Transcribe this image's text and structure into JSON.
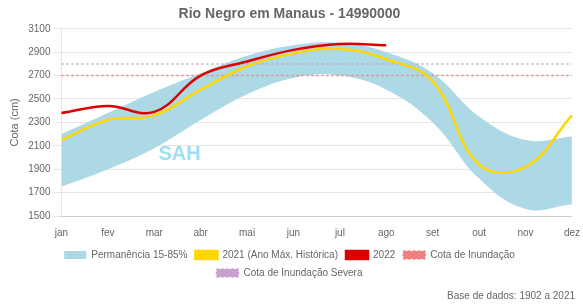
{
  "chart_data": {
    "type": "line",
    "title": "Rio Negro em Manaus - 14990000",
    "y_label": "Cota (cm)",
    "categories": [
      "jan",
      "fev",
      "mar",
      "abr",
      "mai",
      "jun",
      "jul",
      "ago",
      "set",
      "out",
      "nov",
      "dez"
    ],
    "series": [
      {
        "name": "Permanência 15-85%",
        "type": "band",
        "color": "#add8e6",
        "values": [
          2200,
          2380,
          2560,
          2720,
          2870,
          2960,
          2980,
          2900,
          2720,
          2350,
          2150,
          2180
        ],
        "lower": [
          1750,
          1900,
          2080,
          2320,
          2540,
          2680,
          2700,
          2580,
          2300,
          1820,
          1560,
          1600
        ]
      },
      {
        "name": "2021 (Ano Máx. Histórica)",
        "type": "line",
        "color": "#ffd700",
        "line_style": "solid",
        "values": [
          2150,
          2320,
          2360,
          2580,
          2780,
          2890,
          2930,
          2840,
          2650,
          1940,
          1920,
          2360
        ]
      },
      {
        "name": "2022",
        "type": "line",
        "color": "#dd0000",
        "line_style": "solid",
        "values": [
          2380,
          2440,
          2390,
          2700,
          2820,
          2920,
          2970,
          2960,
          null,
          null,
          null,
          null
        ]
      },
      {
        "name": "Cota de Inundação",
        "type": "hline",
        "color": "#f08080",
        "line_style": "dotted",
        "value": 2700
      },
      {
        "name": "Cota de Inundação Severa",
        "type": "hline",
        "color": "#c8a0d0",
        "line_style": "dotted",
        "value": 2800
      }
    ],
    "ylim": [
      1500,
      3100
    ],
    "yticks": [
      1500,
      1700,
      1900,
      2100,
      2300,
      2500,
      2700,
      2900,
      3100
    ],
    "grid": "y",
    "legend": "bottom",
    "annotations": [
      {
        "text": "SAH",
        "color": "#5bc8f0"
      },
      {
        "text": "Base de dados: 1902 a 2021"
      }
    ]
  }
}
